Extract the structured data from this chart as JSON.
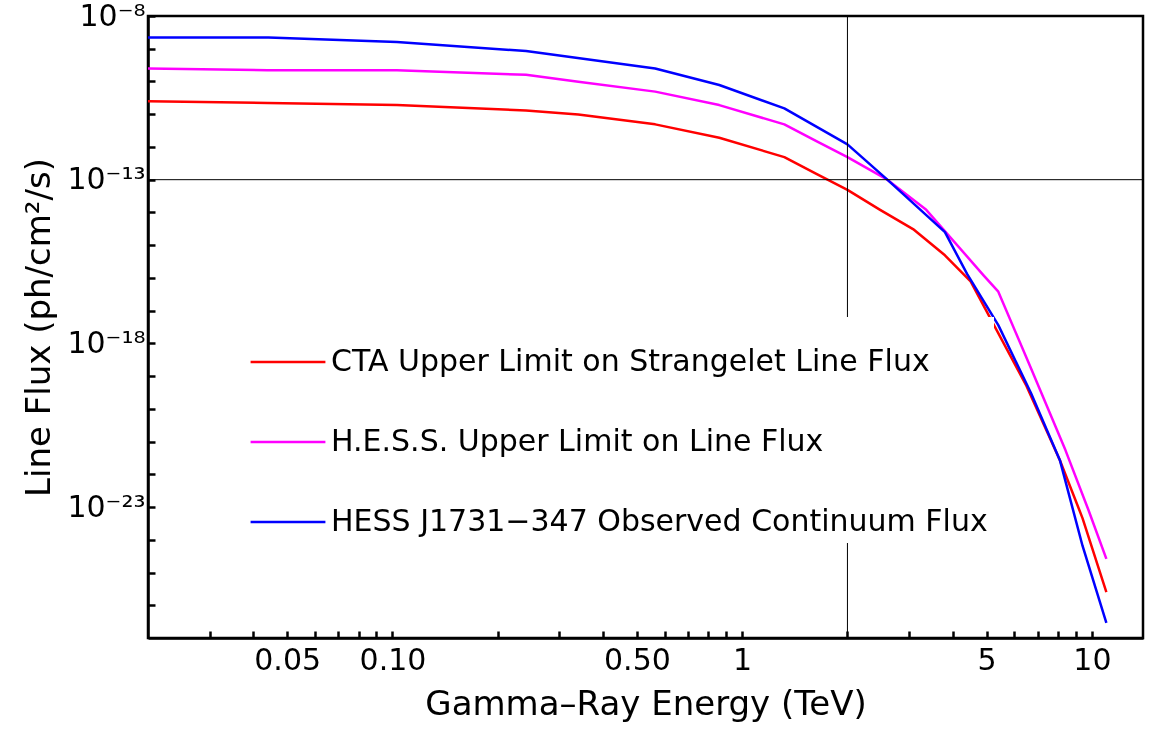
{
  "chart_data": {
    "type": "line",
    "xlabel": "Gamma–Ray Energy (TeV)",
    "ylabel": "Line Flux (ph/cm²/s)",
    "log": "xy",
    "grid": false,
    "legend": "bottom left",
    "marker": "none",
    "line_style": "solid",
    "xlim": [
      0.02,
      14
    ],
    "ylim": [
      1e-27,
      1e-08
    ],
    "xticks": [
      {
        "value": 0.03,
        "label": null
      },
      {
        "value": 0.04,
        "label": null
      },
      0.05,
      {
        "value": 0.06,
        "label": null
      },
      {
        "value": 0.07,
        "label": null
      },
      {
        "value": 0.08,
        "label": null
      },
      {
        "value": 0.09,
        "label": null
      },
      {
        "value": 0.1,
        "label": "0.10"
      },
      {
        "value": 0.2,
        "label": null
      },
      {
        "value": 0.3,
        "label": null
      },
      {
        "value": 0.4,
        "label": null
      },
      {
        "value": 0.5,
        "label": "0.50"
      },
      {
        "value": 0.6,
        "label": null
      },
      {
        "value": 0.7,
        "label": null
      },
      {
        "value": 0.8,
        "label": null
      },
      {
        "value": 0.9,
        "label": null
      },
      1,
      {
        "value": 2,
        "label": null
      },
      {
        "value": 3,
        "label": null
      },
      {
        "value": 4,
        "label": null
      },
      5,
      {
        "value": 6,
        "label": null
      },
      {
        "value": 7,
        "label": null
      },
      {
        "value": 8,
        "label": null
      },
      {
        "value": 9,
        "label": null
      },
      10
    ],
    "yticks": [
      {
        "value": 1e-08,
        "label": "10⁻⁸"
      },
      {
        "value": 1e-09,
        "label": null
      },
      {
        "value": 1e-10,
        "label": null
      },
      {
        "value": 1e-11,
        "label": null
      },
      {
        "value": 1e-12,
        "label": null
      },
      {
        "value": 1e-13,
        "label": "10⁻¹³"
      },
      {
        "value": 1e-14,
        "label": null
      },
      {
        "value": 1e-15,
        "label": null
      },
      {
        "value": 1e-16,
        "label": null
      },
      {
        "value": 1e-17,
        "label": null
      },
      {
        "value": 1e-18,
        "label": "10⁻¹⁸"
      },
      {
        "value": 1e-19,
        "label": null
      },
      {
        "value": 1e-20,
        "label": null
      },
      {
        "value": 1e-21,
        "label": null
      },
      {
        "value": 1e-22,
        "label": null
      },
      {
        "value": 1e-23,
        "label": "10⁻²³"
      },
      {
        "value": 1e-24,
        "label": null
      },
      {
        "value": 1e-25,
        "label": null
      },
      {
        "value": 1e-26,
        "label": null
      }
    ],
    "ref_lines": [
      {
        "axis": "x",
        "value": 2,
        "color": "#000000"
      },
      {
        "axis": "y",
        "value": 1e-13,
        "color": "#000000"
      }
    ],
    "series": [
      {
        "name": "CTA Upper Limit on Strangelet Line Flux",
        "color": "#ff0000",
        "x": [
          0.02,
          0.044,
          0.103,
          0.241,
          0.34,
          0.564,
          0.86,
          1.32,
          1.63,
          2.0,
          2.48,
          3.08,
          3.8,
          4.5,
          6.5,
          8.1,
          9.4,
          11.0
        ],
        "values": [
          2.5e-11,
          2.2e-11,
          1.9e-11,
          1.3e-11,
          9.8e-12,
          4.9e-12,
          1.9e-12,
          4.9e-13,
          1.5e-13,
          4.9e-14,
          1.2e-14,
          3.1e-15,
          4.9e-16,
          7.8e-17,
          5e-20,
          2.7e-22,
          4.6e-24,
          2.5e-26
        ]
      },
      {
        "name": "H.E.S.S. Upper Limit on Line Flux",
        "color": "#ff00ff",
        "x": [
          0.02,
          0.044,
          0.103,
          0.241,
          0.34,
          0.564,
          0.86,
          1.32,
          1.63,
          2.0,
          2.6,
          3.36,
          4.9,
          5.4,
          6.7,
          8.4,
          9.8,
          11.0
        ],
        "values": [
          2.5e-10,
          2.2e-10,
          2.2e-10,
          1.6e-10,
          9.8e-11,
          4.9e-11,
          1.9e-11,
          4.9e-12,
          1.5e-12,
          4.9e-13,
          1e-13,
          1.2e-14,
          1.2e-16,
          3.8e-17,
          1.7e-19,
          5.5e-22,
          7.6e-24,
          2.6e-25
        ]
      },
      {
        "name": "HESS J1731−347 Observed Continuum Flux",
        "color": "#0000ff",
        "x": [
          0.02,
          0.0442,
          0.103,
          0.241,
          0.564,
          0.86,
          1.32,
          2.0,
          2.6,
          3.8,
          4.4,
          5.4,
          6.7,
          8.1,
          9.4,
          11.0
        ],
        "values": [
          2.2e-09,
          2.2e-09,
          1.6e-09,
          8.5e-10,
          2.5e-10,
          7.8e-11,
          1.5e-11,
          1.2e-12,
          1e-13,
          2.5e-15,
          1.3e-16,
          3.6e-18,
          3e-20,
          2.7e-22,
          6.6e-25,
          2.9e-27
        ]
      }
    ]
  }
}
